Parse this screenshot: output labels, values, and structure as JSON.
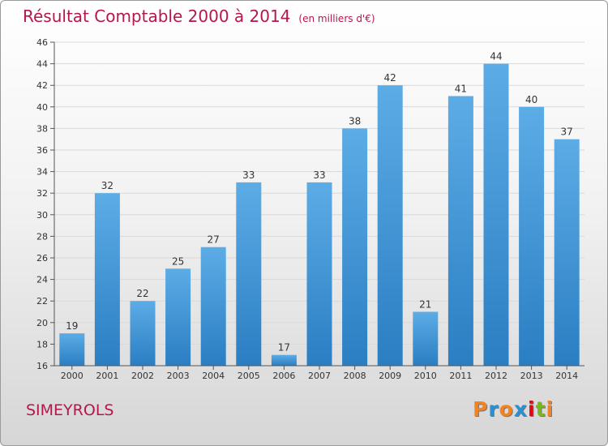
{
  "title": "Résultat Comptable 2000 à 2014",
  "subtitle": "(en milliers d'€)",
  "place": "SIMEYROLS",
  "logo": {
    "text": "Proxiti",
    "colors": [
      "#f5821f",
      "#2c8fd0",
      "#f5821f",
      "#2c8fd0",
      "#e30613",
      "#7bb61d",
      "#f5821f"
    ]
  },
  "colors": {
    "bar_top": "#5cace6",
    "bar_bottom": "#2a7ec2",
    "title": "#b5174d"
  },
  "chart_data": {
    "type": "bar",
    "categories": [
      "2000",
      "2001",
      "2002",
      "2003",
      "2004",
      "2005",
      "2006",
      "2007",
      "2008",
      "2009",
      "2010",
      "2011",
      "2012",
      "2013",
      "2014"
    ],
    "values": [
      19,
      32,
      22,
      25,
      27,
      33,
      17,
      33,
      38,
      42,
      21,
      41,
      44,
      40,
      37
    ],
    "title": "Résultat Comptable 2000 à 2014",
    "subtitle": "(en milliers d'€)",
    "xlabel": "",
    "ylabel": "",
    "ylim": [
      16,
      46
    ],
    "yticks": [
      16,
      18,
      20,
      22,
      24,
      26,
      28,
      30,
      32,
      34,
      36,
      38,
      40,
      42,
      44,
      46
    ],
    "grid": true,
    "legend": "none"
  }
}
